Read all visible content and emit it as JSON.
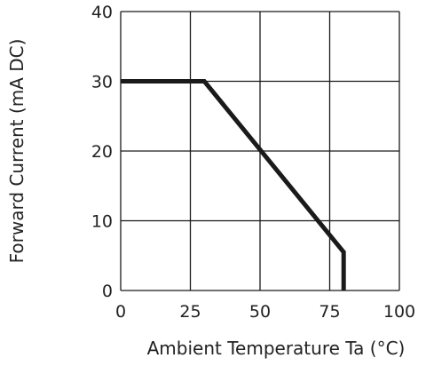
{
  "chart_data": {
    "type": "line",
    "title": "",
    "xlabel": "Ambient Temperature Ta (°C)",
    "ylabel": "Forward Current (mA DC)",
    "xlim": [
      0,
      100
    ],
    "ylim": [
      0,
      40
    ],
    "x_ticks": [
      0,
      25,
      50,
      75,
      100
    ],
    "y_ticks": [
      0,
      10,
      20,
      30,
      40
    ],
    "x_tick_labels": [
      "0",
      "25",
      "50",
      "75",
      "100"
    ],
    "y_tick_labels": [
      "0",
      "10",
      "20",
      "30",
      "40"
    ],
    "grid": true,
    "legend": "none",
    "series": [
      {
        "x": [
          0,
          30,
          80,
          80
        ],
        "y": [
          30,
          30,
          5.5,
          0
        ]
      }
    ],
    "colors": {
      "line": "#1a1a1a",
      "grid": "#1a1a1a",
      "text": "#222222",
      "background": "#ffffff"
    }
  }
}
